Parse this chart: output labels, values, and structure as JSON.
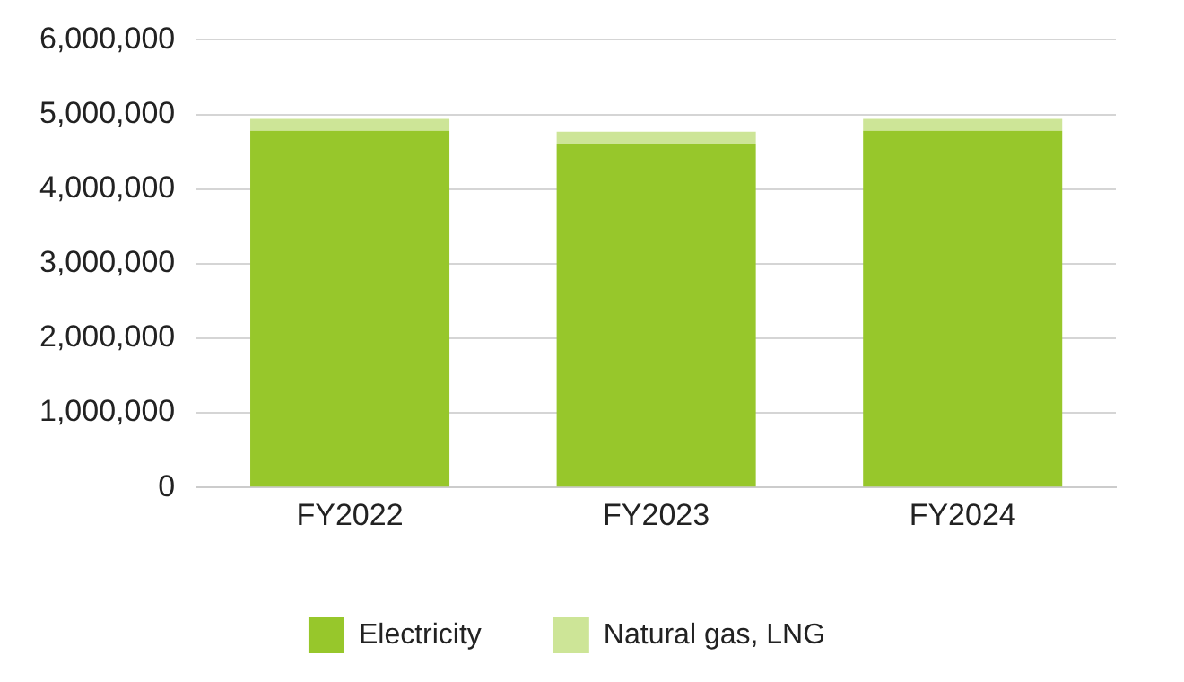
{
  "chart_data": {
    "type": "bar",
    "stacked": true,
    "categories": [
      "FY2022",
      "FY2023",
      "FY2024"
    ],
    "series": [
      {
        "name": "Electricity",
        "color": "#97c72b",
        "values": [
          4780000,
          4610000,
          4780000
        ]
      },
      {
        "name": "Natural gas, LNG",
        "color": "#cde597",
        "values": [
          160000,
          160000,
          160000
        ]
      }
    ],
    "ylim": [
      0,
      6000000
    ],
    "yticks": [
      0,
      {
        "value": 1000000,
        "label": "1,000,000"
      },
      {
        "value": 2000000,
        "label": "2,000,000"
      },
      {
        "value": 3000000,
        "label": "3,000,000"
      },
      {
        "value": 4000000,
        "label": "4,000,000"
      },
      {
        "value": 5000000,
        "label": "5,000,000"
      },
      {
        "value": 6000000,
        "label": "6,000,000"
      }
    ],
    "grid": "y",
    "legend": "bottom"
  }
}
